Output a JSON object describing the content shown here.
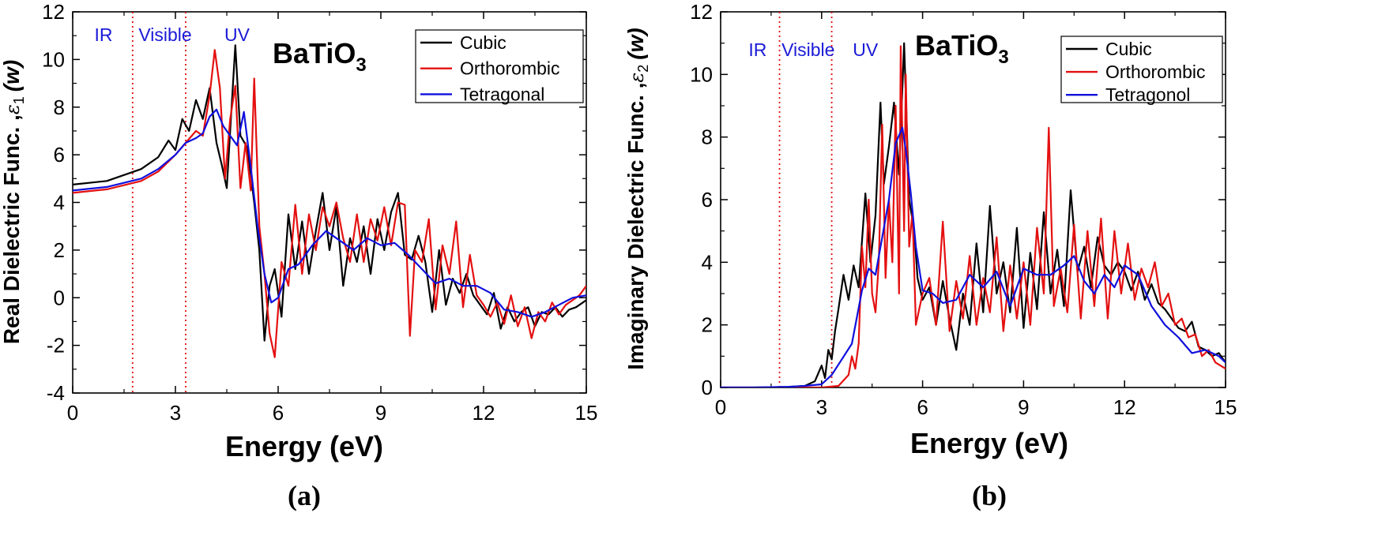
{
  "colors": {
    "cubic": "#000000",
    "orthorombic": "#e41010",
    "tetragonal": "#1010dd",
    "region_text": "#1a1ad8",
    "region_line": "#e41010"
  },
  "chart_data": [
    {
      "type": "line",
      "panel_label": "(a)",
      "xlabel": "Energy (eV)",
      "ylabel": "Real Dielectric Func. ,ε1 (w)",
      "ylabel_parts": {
        "main": "Real Dielectric Func. ,",
        "symbol": "ε",
        "sub": "1",
        "var": "(w)"
      },
      "xlim": [
        0,
        15
      ],
      "ylim": [
        -4,
        12
      ],
      "xticks": [
        "0",
        "3",
        "6",
        "9",
        "12",
        "15"
      ],
      "yticks": [
        "-4",
        "-2",
        "0",
        "2",
        "4",
        "6",
        "8",
        "10",
        "12"
      ],
      "compound": {
        "text": "BaTiO",
        "sub": "3"
      },
      "regions": [
        {
          "label": "IR",
          "x": 0.9
        },
        {
          "label": "Visible",
          "x": 2.7
        },
        {
          "label": "UV",
          "x": 4.8
        }
      ],
      "region_boundaries": [
        1.75,
        3.3
      ],
      "legend_position": "top-right",
      "series": [
        {
          "name": "Cubic",
          "color": "#000000",
          "x": [
            0,
            1,
            2,
            2.5,
            2.8,
            3,
            3.2,
            3.4,
            3.6,
            3.8,
            4,
            4.2,
            4.35,
            4.5,
            4.6,
            4.75,
            4.9,
            5.1,
            5.3,
            5.45,
            5.6,
            5.75,
            5.9,
            6.1,
            6.3,
            6.5,
            6.7,
            6.9,
            7.1,
            7.3,
            7.5,
            7.7,
            7.9,
            8.1,
            8.3,
            8.5,
            8.7,
            8.9,
            9.1,
            9.3,
            9.5,
            9.7,
            9.9,
            10.1,
            10.3,
            10.5,
            10.7,
            10.9,
            11.1,
            11.3,
            11.5,
            11.7,
            11.9,
            12.1,
            12.3,
            12.5,
            12.7,
            12.9,
            13.1,
            13.3,
            13.5,
            13.7,
            13.9,
            14.1,
            14.3,
            14.5,
            14.7,
            15
          ],
          "y": [
            4.75,
            4.9,
            5.4,
            5.9,
            6.6,
            6.2,
            7.5,
            7.0,
            8.3,
            7.5,
            8.8,
            6.5,
            5.6,
            4.6,
            7.0,
            10.6,
            6.8,
            6.3,
            4.0,
            2.0,
            -1.8,
            0.5,
            1.2,
            -0.8,
            3.5,
            1.2,
            3.2,
            1.0,
            2.8,
            4.4,
            2.0,
            3.8,
            0.5,
            2.5,
            1.5,
            3.0,
            1.0,
            3.3,
            2.0,
            3.6,
            4.4,
            1.8,
            1.6,
            2.6,
            1.5,
            -0.6,
            2.0,
            -0.3,
            0.8,
            0.2,
            1.0,
            0.1,
            -0.3,
            -0.7,
            0.2,
            -1.3,
            -0.4,
            -1.0,
            -0.6,
            -0.4,
            -1.2,
            -0.6,
            -0.7,
            -0.4,
            -0.8,
            -0.5,
            -0.4,
            -0.1
          ]
        },
        {
          "name": "Orthorombic",
          "color": "#e41010",
          "x": [
            0,
            1,
            2,
            2.5,
            3,
            3.3,
            3.6,
            3.8,
            4,
            4.15,
            4.3,
            4.45,
            4.6,
            4.75,
            4.9,
            5.05,
            5.2,
            5.3,
            5.45,
            5.6,
            5.75,
            5.9,
            6.1,
            6.3,
            6.5,
            6.7,
            6.9,
            7.1,
            7.3,
            7.5,
            7.7,
            7.9,
            8.1,
            8.3,
            8.5,
            8.7,
            8.9,
            9.1,
            9.3,
            9.5,
            9.7,
            9.85,
            10,
            10.2,
            10.4,
            10.6,
            10.8,
            11,
            11.2,
            11.4,
            11.6,
            11.8,
            12,
            12.2,
            12.4,
            12.6,
            12.8,
            13,
            13.2,
            13.4,
            13.6,
            13.8,
            14,
            14.2,
            14.4,
            14.6,
            14.8,
            15
          ],
          "y": [
            4.4,
            4.55,
            4.9,
            5.3,
            6.0,
            6.5,
            7.0,
            6.8,
            8.5,
            10.4,
            8.8,
            5.0,
            7.5,
            8.9,
            4.6,
            6.5,
            4.5,
            9.2,
            3.0,
            1.0,
            -1.5,
            -2.5,
            1.5,
            0.5,
            3.9,
            1.0,
            3.5,
            2.0,
            3.8,
            3.0,
            4.0,
            2.5,
            1.5,
            3.5,
            1.5,
            3.3,
            2.4,
            3.8,
            2.2,
            4.0,
            3.9,
            -1.6,
            2.0,
            1.5,
            3.3,
            -0.5,
            2.2,
            1.0,
            3.2,
            -0.4,
            1.8,
            0.1,
            -0.3,
            -0.8,
            -0.2,
            -1.1,
            0.1,
            -1.2,
            -0.4,
            -1.7,
            -0.6,
            -1.0,
            -0.2,
            -0.7,
            -0.3,
            -0.1,
            0.1,
            0.5
          ]
        },
        {
          "name": "Tetragonal",
          "color": "#1010dd",
          "x": [
            0,
            1,
            2,
            2.5,
            3,
            3.3,
            3.6,
            3.8,
            4,
            4.2,
            4.4,
            4.6,
            4.8,
            5,
            5.2,
            5.4,
            5.6,
            5.8,
            6,
            6.3,
            6.6,
            7,
            7.4,
            7.8,
            8.2,
            8.6,
            9,
            9.4,
            9.8,
            10.2,
            10.6,
            11,
            11.4,
            11.8,
            12.2,
            12.6,
            13,
            13.4,
            13.8,
            14.2,
            14.6,
            15
          ],
          "y": [
            4.5,
            4.65,
            5.0,
            5.4,
            6.0,
            6.5,
            6.7,
            6.9,
            7.6,
            7.9,
            7.2,
            6.8,
            6.4,
            7.8,
            5.5,
            3.0,
            1.0,
            -0.2,
            0.0,
            1.2,
            1.4,
            2.2,
            2.8,
            2.4,
            2.0,
            2.5,
            2.2,
            2.3,
            1.8,
            1.2,
            0.6,
            0.8,
            0.5,
            0.5,
            0.2,
            -0.5,
            -0.6,
            -0.8,
            -0.6,
            -0.3,
            0.0,
            0.1
          ]
        }
      ]
    },
    {
      "type": "line",
      "panel_label": "(b)",
      "xlabel": "Energy (eV)",
      "ylabel": "Imaginary Dielectric Func. ,ε2 (w)",
      "ylabel_parts": {
        "main": "Imaginary Dielectric Func. ,",
        "symbol": "ε",
        "sub": "2",
        "var": "(w)"
      },
      "xlim": [
        0,
        15
      ],
      "ylim": [
        0,
        12
      ],
      "xticks": [
        "0",
        "3",
        "6",
        "9",
        "12",
        "15"
      ],
      "yticks": [
        "0",
        "2",
        "4",
        "6",
        "8",
        "10",
        "12"
      ],
      "compound": {
        "text": "BaTiO",
        "sub": "3"
      },
      "regions": [
        {
          "label": "IR",
          "x": 1.1
        },
        {
          "label": "Visible",
          "x": 2.6
        },
        {
          "label": "UV",
          "x": 4.3
        }
      ],
      "region_boundaries": [
        1.75,
        3.3
      ],
      "legend_position": "top-right",
      "series": [
        {
          "name": "Cubic",
          "color": "#000000",
          "x": [
            0,
            1,
            2,
            2.5,
            2.8,
            3,
            3.1,
            3.2,
            3.3,
            3.4,
            3.5,
            3.65,
            3.8,
            3.95,
            4.1,
            4.3,
            4.45,
            4.6,
            4.75,
            4.85,
            5,
            5.15,
            5.3,
            5.45,
            5.6,
            5.75,
            5.85,
            6,
            6.2,
            6.4,
            6.6,
            6.8,
            7,
            7.2,
            7.4,
            7.6,
            7.8,
            8,
            8.2,
            8.4,
            8.6,
            8.8,
            9,
            9.2,
            9.4,
            9.6,
            9.8,
            10,
            10.2,
            10.4,
            10.6,
            10.8,
            11,
            11.2,
            11.4,
            11.6,
            11.8,
            12,
            12.2,
            12.4,
            12.6,
            12.8,
            13,
            13.2,
            13.4,
            13.6,
            13.8,
            14,
            14.2,
            14.4,
            14.6,
            14.8,
            15
          ],
          "y": [
            0,
            0,
            0.02,
            0.05,
            0.2,
            0.7,
            0.3,
            1.2,
            0.9,
            1.8,
            2.5,
            3.6,
            2.8,
            3.9,
            3.2,
            6.2,
            4.0,
            5.5,
            9.1,
            6.5,
            7.7,
            9.1,
            6.8,
            11.0,
            6.0,
            5.0,
            3.5,
            2.8,
            3.2,
            2.0,
            3.4,
            2.2,
            1.2,
            3.0,
            2.0,
            4.6,
            2.4,
            5.8,
            3.0,
            4.0,
            2.4,
            5.1,
            1.9,
            4.3,
            2.5,
            5.6,
            3.0,
            4.4,
            2.6,
            6.3,
            3.7,
            4.5,
            3.2,
            4.8,
            3.9,
            3.6,
            4.0,
            3.7,
            3.1,
            3.7,
            2.8,
            3.3,
            2.7,
            2.5,
            2.2,
            1.9,
            1.8,
            2.1,
            1.3,
            1.2,
            1.0,
            1.1,
            0.8
          ]
        },
        {
          "name": "Orthorombic",
          "color": "#e41010",
          "x": [
            0,
            1,
            2,
            3,
            3.5,
            3.8,
            3.9,
            4,
            4.1,
            4.2,
            4.3,
            4.4,
            4.5,
            4.6,
            4.7,
            4.8,
            4.9,
            5,
            5.1,
            5.2,
            5.3,
            5.35,
            5.45,
            5.5,
            5.6,
            5.7,
            5.8,
            5.9,
            6,
            6.2,
            6.4,
            6.6,
            6.8,
            7,
            7.2,
            7.4,
            7.6,
            7.8,
            8,
            8.2,
            8.4,
            8.6,
            8.8,
            9,
            9.2,
            9.4,
            9.6,
            9.75,
            9.9,
            10.1,
            10.3,
            10.5,
            10.7,
            10.9,
            11.1,
            11.3,
            11.5,
            11.7,
            11.9,
            12.1,
            12.3,
            12.5,
            12.7,
            12.9,
            13.1,
            13.3,
            13.5,
            13.7,
            13.9,
            14.1,
            14.3,
            14.5,
            14.7,
            15
          ],
          "y": [
            0,
            0,
            0,
            0,
            0.05,
            0.4,
            1.0,
            0.6,
            1.4,
            4.5,
            3.2,
            6.0,
            3.0,
            2.4,
            4.0,
            8.4,
            3.5,
            6.0,
            4.0,
            9.0,
            3.0,
            10.9,
            5.0,
            10.0,
            4.5,
            5.6,
            2.0,
            2.5,
            3.0,
            3.5,
            2.0,
            5.3,
            1.8,
            3.4,
            2.2,
            4.2,
            2.0,
            3.5,
            2.4,
            4.8,
            1.8,
            3.9,
            2.2,
            4.0,
            2.0,
            5.1,
            3.0,
            8.3,
            2.6,
            3.8,
            2.4,
            5.2,
            2.2,
            5.0,
            2.6,
            5.4,
            2.2,
            5.0,
            3.0,
            4.6,
            2.8,
            3.8,
            3.2,
            4.0,
            2.6,
            3.0,
            2.0,
            2.2,
            1.6,
            1.7,
            1.0,
            1.2,
            0.8,
            0.6
          ]
        },
        {
          "name": "Tetragonol",
          "color": "#1010dd",
          "x": [
            0,
            1,
            2,
            2.5,
            3,
            3.3,
            3.6,
            3.9,
            4.2,
            4.4,
            4.6,
            4.8,
            5,
            5.2,
            5.4,
            5.5,
            5.65,
            5.8,
            6,
            6.3,
            6.6,
            7,
            7.4,
            7.8,
            8.2,
            8.6,
            9,
            9.4,
            9.8,
            10.2,
            10.5,
            10.8,
            11.1,
            11.4,
            11.7,
            12,
            12.4,
            12.8,
            13.2,
            13.6,
            14,
            14.4,
            14.8,
            15
          ],
          "y": [
            0,
            0,
            0.02,
            0.05,
            0.1,
            0.4,
            0.9,
            1.4,
            3.1,
            3.8,
            3.6,
            4.8,
            6.0,
            7.8,
            8.3,
            7.6,
            6.2,
            4.5,
            3.1,
            3.0,
            2.7,
            2.8,
            3.6,
            3.2,
            3.7,
            2.6,
            3.8,
            3.6,
            3.6,
            3.9,
            4.2,
            3.4,
            3.0,
            3.6,
            3.2,
            3.9,
            3.6,
            2.6,
            2.0,
            1.6,
            1.1,
            1.2,
            1.0,
            0.8
          ]
        }
      ]
    }
  ]
}
